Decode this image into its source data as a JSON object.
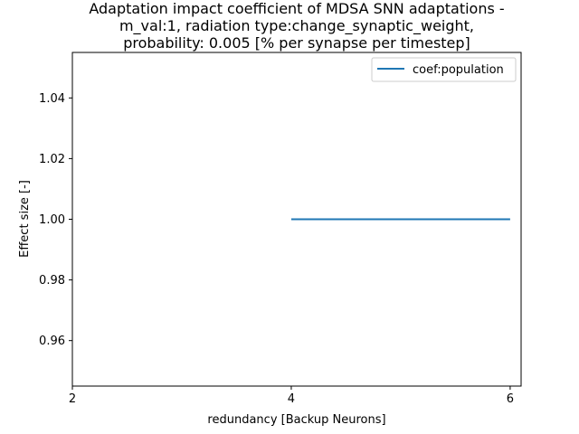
{
  "chart_data": {
    "type": "line",
    "title_lines": [
      "Adaptation impact coefficient of MDSA SNN adaptations -",
      "m_val:1, radiation type:change_synaptic_weight,",
      "probability: 0.005 [% per synapse per timestep]"
    ],
    "xlabel": "redundancy [Backup Neurons]",
    "ylabel": "Effect size [-]",
    "xlim": [
      2,
      6.1
    ],
    "ylim": [
      0.945,
      1.055
    ],
    "x_ticks": [
      2,
      4,
      6
    ],
    "y_ticks": [
      0.96,
      0.98,
      1.0,
      1.02,
      1.04
    ],
    "x_tick_labels": [
      "2",
      "4",
      "6"
    ],
    "y_tick_labels": [
      "0.96",
      "0.98",
      "1.00",
      "1.02",
      "1.04"
    ],
    "grid": false,
    "legend_position": "top-right",
    "series": [
      {
        "name": "coef:population",
        "color": "#1f77b4",
        "x": [
          4,
          6
        ],
        "y": [
          1.0,
          1.0
        ]
      }
    ]
  }
}
